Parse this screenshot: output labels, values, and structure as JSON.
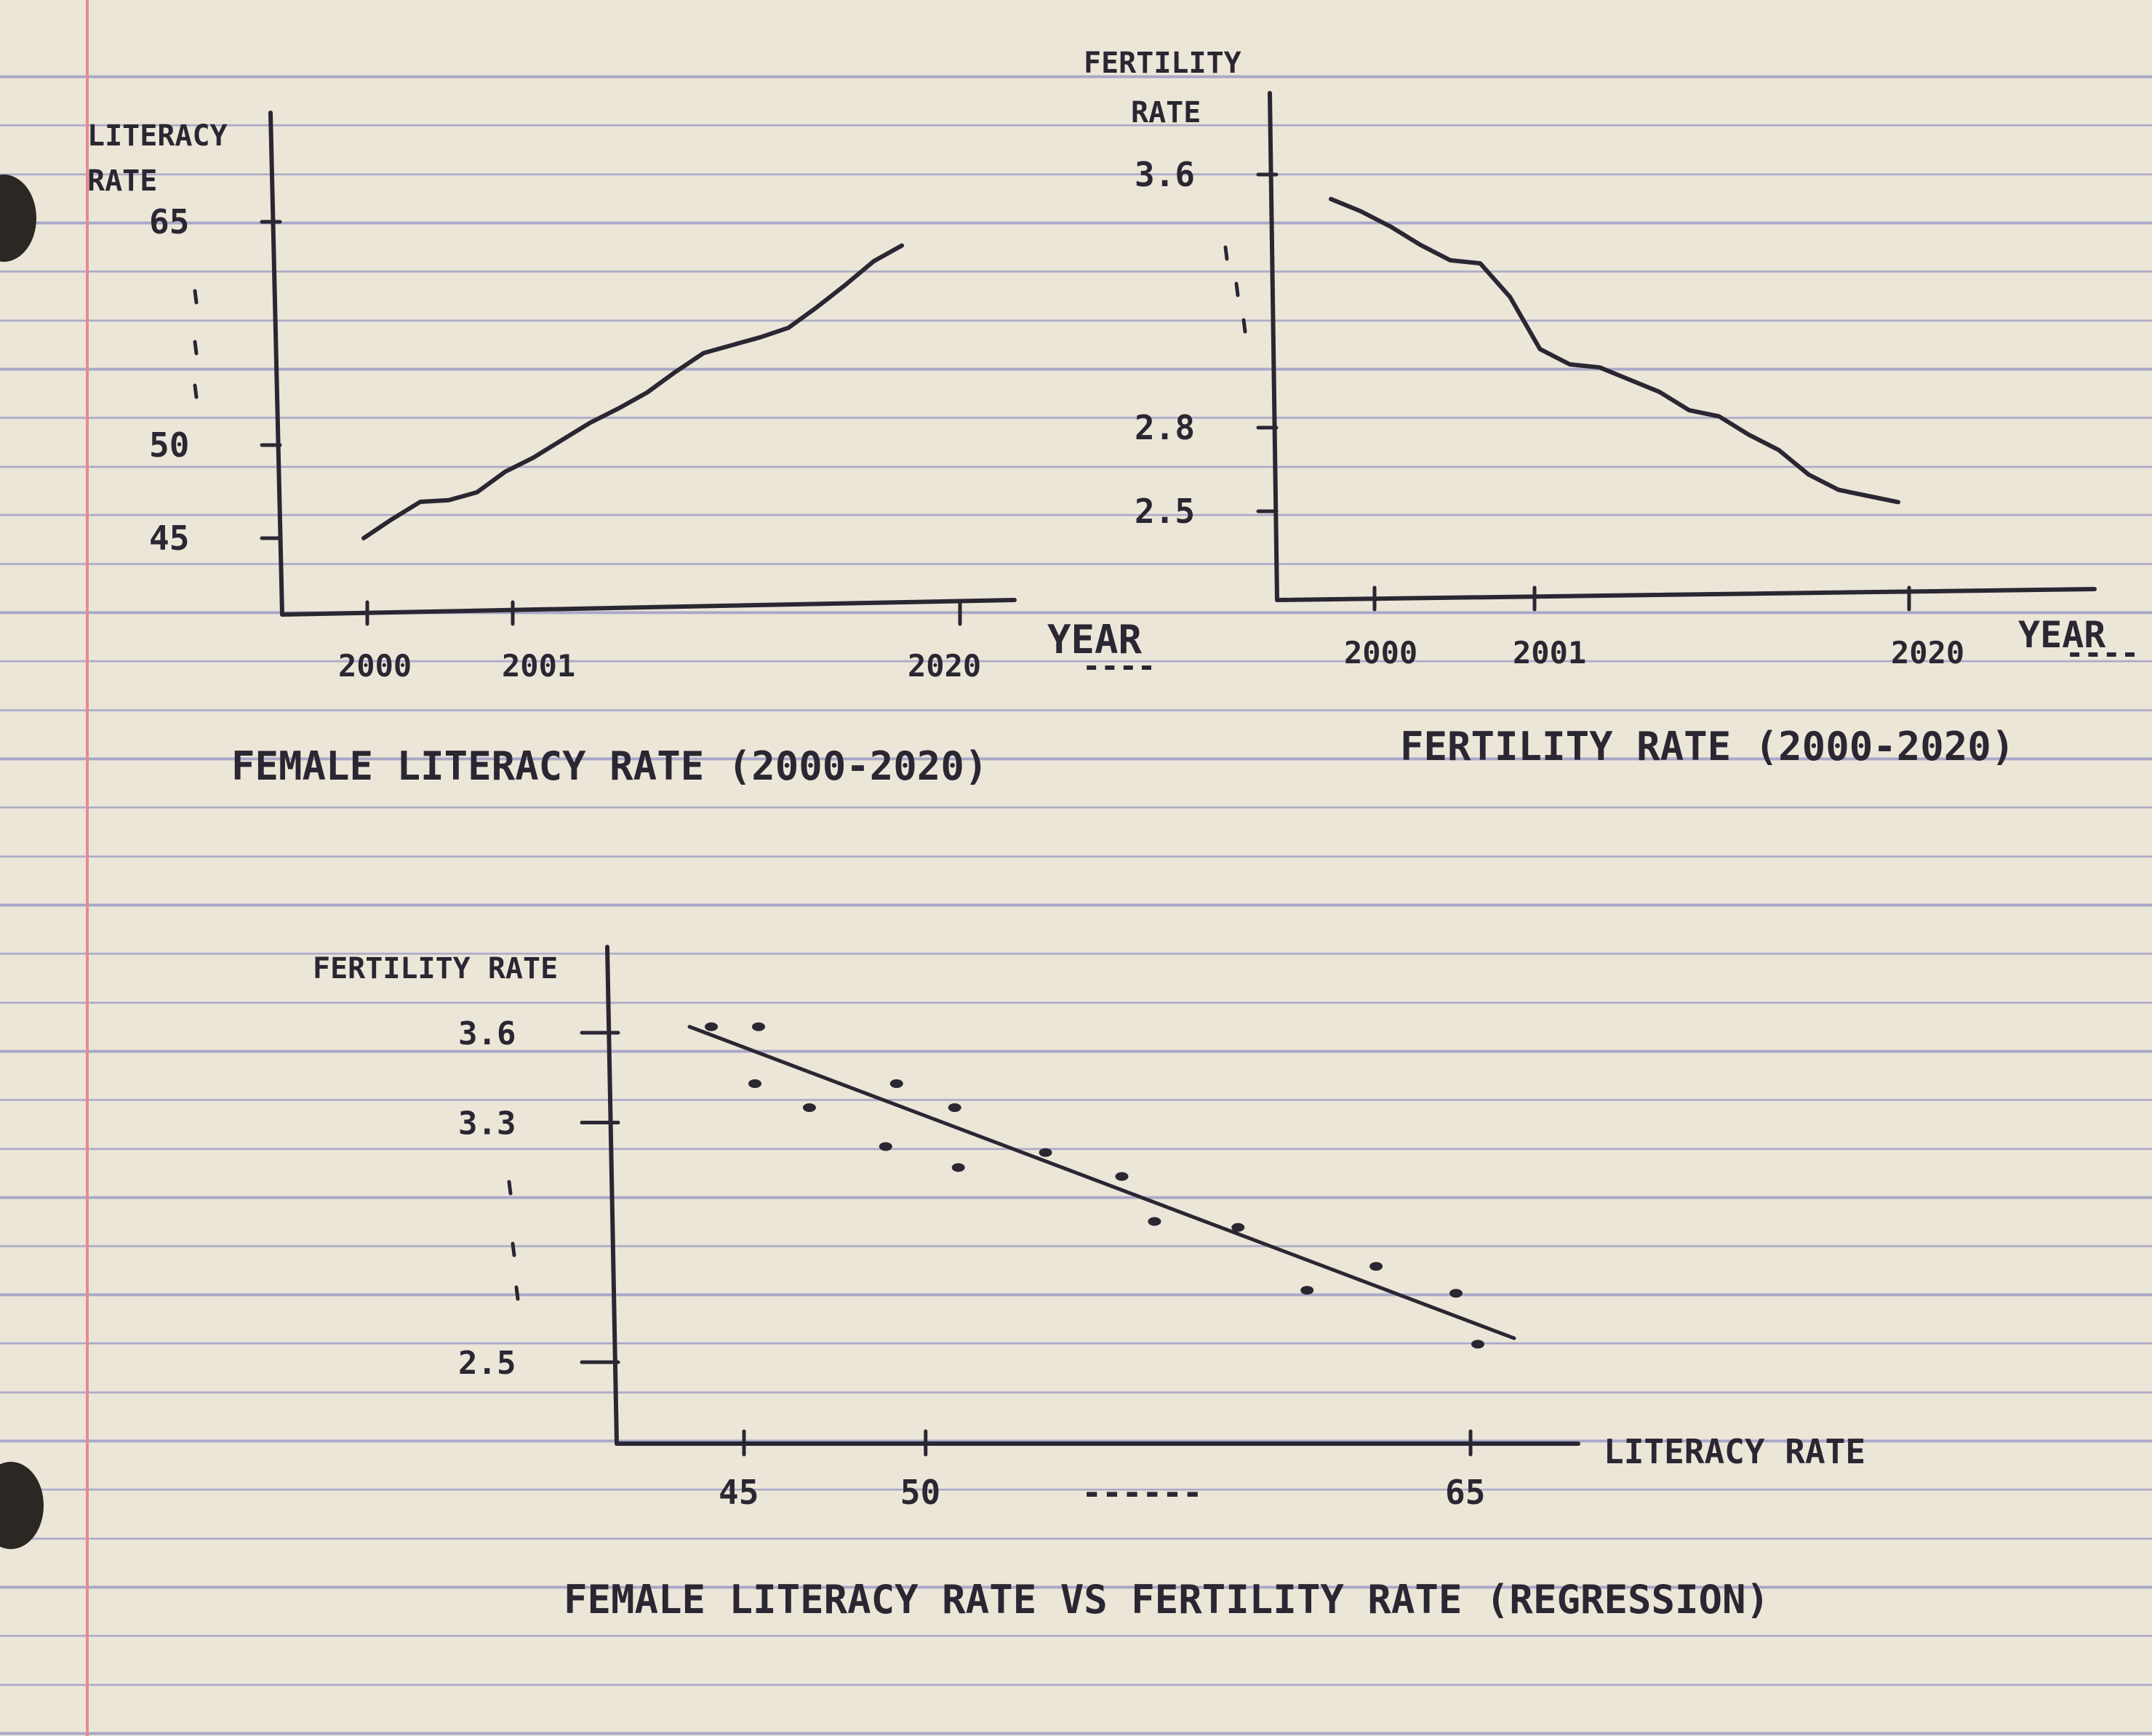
{
  "chart_data": [
    {
      "type": "line",
      "title": "FEMALE LITERACY RATE (2000-2020)",
      "xlabel": "YEAR",
      "ylabel": "LITERACY RATE",
      "x_tick_labels": [
        "2000",
        "2001",
        "----",
        "2020"
      ],
      "y_tick_labels": [
        "45",
        "50",
        "65"
      ],
      "y_tick_values": [
        45,
        50,
        65
      ],
      "ylim": [
        44,
        66
      ],
      "x": [
        2000,
        2001,
        2002,
        2003,
        2004,
        2005,
        2006,
        2007,
        2008,
        2009,
        2010,
        2011,
        2012,
        2013,
        2014,
        2015,
        2016,
        2017,
        2018,
        2019
      ],
      "values": [
        45.0,
        46.2,
        47.3,
        47.4,
        47.9,
        49.2,
        50.1,
        51.2,
        52.3,
        53.2,
        54.2,
        55.5,
        56.7,
        57.2,
        57.7,
        58.3,
        59.6,
        61.0,
        62.5,
        63.5
      ]
    },
    {
      "type": "line",
      "title": "FERTILITY RATE (2000-2020)",
      "xlabel": "YEAR",
      "ylabel": "FERTILITY RATE",
      "x_tick_labels": [
        "2000",
        "2001",
        "----",
        "2020"
      ],
      "y_tick_labels": [
        "2.5",
        "2.8",
        "3.6"
      ],
      "y_tick_values": [
        2.5,
        2.8,
        3.6
      ],
      "ylim": [
        2.3,
        3.7
      ],
      "x": [
        2000,
        2001,
        2002,
        2003,
        2004,
        2005,
        2006,
        2007,
        2008,
        2009,
        2010,
        2011,
        2012,
        2013,
        2014,
        2015,
        2016,
        2017,
        2018,
        2019
      ],
      "values": [
        3.52,
        3.48,
        3.43,
        3.37,
        3.32,
        3.31,
        3.2,
        3.03,
        2.98,
        2.97,
        2.93,
        2.89,
        2.83,
        2.81,
        2.75,
        2.7,
        2.62,
        2.57,
        2.55,
        2.53
      ]
    },
    {
      "type": "scatter",
      "title": "FEMALE LITERACY RATE VS FERTILITY RATE (REGRESSION)",
      "xlabel": "LITERACY RATE",
      "ylabel": "FERTILITY RATE",
      "x_tick_labels": [
        "45",
        "50",
        "------",
        "65"
      ],
      "x_tick_values": [
        45,
        50,
        65
      ],
      "y_tick_labels": [
        "2.5",
        "3.3",
        "3.6"
      ],
      "y_tick_values": [
        2.5,
        3.3,
        3.6
      ],
      "xlim": [
        42,
        66.5
      ],
      "ylim": [
        2.3,
        3.75
      ],
      "points": [
        {
          "x": 44.1,
          "y": 3.62
        },
        {
          "x": 45.4,
          "y": 3.62
        },
        {
          "x": 45.3,
          "y": 3.43
        },
        {
          "x": 46.8,
          "y": 3.35
        },
        {
          "x": 48.9,
          "y": 3.22
        },
        {
          "x": 49.2,
          "y": 3.43
        },
        {
          "x": 50.8,
          "y": 3.35
        },
        {
          "x": 50.9,
          "y": 3.15
        },
        {
          "x": 53.3,
          "y": 3.2
        },
        {
          "x": 55.4,
          "y": 3.12
        },
        {
          "x": 56.3,
          "y": 2.97
        },
        {
          "x": 58.6,
          "y": 2.95
        },
        {
          "x": 60.5,
          "y": 2.74
        },
        {
          "x": 62.4,
          "y": 2.82
        },
        {
          "x": 64.6,
          "y": 2.73
        },
        {
          "x": 65.2,
          "y": 2.56
        }
      ],
      "regression": {
        "x": [
          43.5,
          66.2
        ],
        "y": [
          3.62,
          2.58
        ]
      }
    }
  ]
}
